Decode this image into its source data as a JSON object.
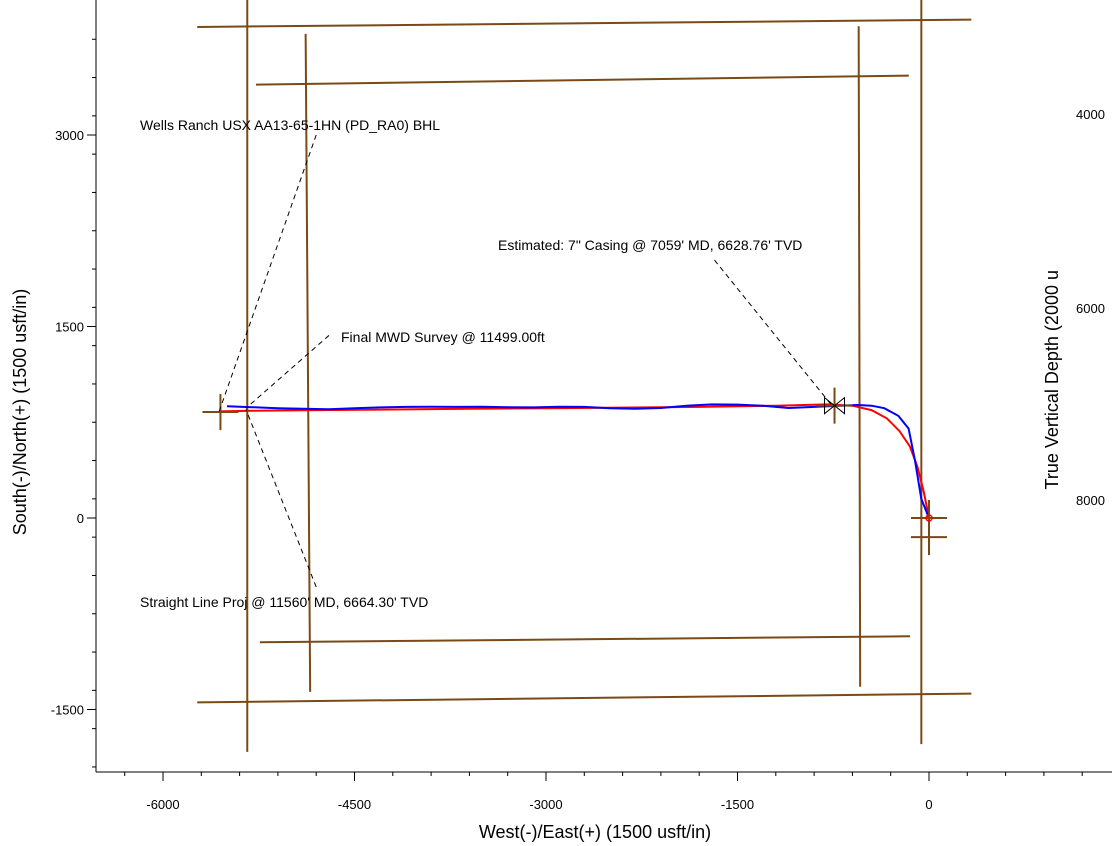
{
  "chart_data": {
    "type": "line",
    "xlabel": "West(-)/East(+) (1500 usft/in)",
    "ylabel": "South(-)/North(+) (1500 usft/in)",
    "ylabel_right": "True Vertical Depth (2000 u",
    "xlim": [
      -6600,
      1200
    ],
    "ylim": [
      -2000,
      4000
    ],
    "x_ticks": [
      -6000,
      -4500,
      -3000,
      -1500,
      0
    ],
    "y_ticks": [
      3000,
      1500,
      0,
      -1500
    ],
    "right_axis_ticks": [
      "4000",
      "6000",
      "8000"
    ],
    "grid": false,
    "series": [
      {
        "role": "plan",
        "color": "#ff0000",
        "x": [
          0,
          -40,
          -90,
          -150,
          -230,
          -330,
          -450,
          -600,
          -800,
          -1200,
          -1800,
          -2400,
          -3000,
          -3600,
          -4200,
          -4800,
          -5300,
          -5560
        ],
        "y": [
          0,
          200,
          400,
          560,
          680,
          780,
          845,
          880,
          890,
          880,
          870,
          865,
          860,
          855,
          850,
          845,
          840,
          835
        ]
      },
      {
        "role": "actual",
        "color": "#0000ff",
        "x": [
          0,
          -60,
          -110,
          -160,
          -240,
          -350,
          -450,
          -560,
          -700,
          -900,
          -1100,
          -1300,
          -1500,
          -1700,
          -1900,
          -2100,
          -2300,
          -2500,
          -2700,
          -2900,
          -3100,
          -3300,
          -3500,
          -3700,
          -3900,
          -4100,
          -4300,
          -4500,
          -4700,
          -4900,
          -5100,
          -5300,
          -5499
        ],
        "y": [
          0,
          150,
          450,
          700,
          800,
          860,
          880,
          885,
          880,
          870,
          862,
          880,
          888,
          890,
          880,
          862,
          855,
          860,
          870,
          872,
          866,
          868,
          872,
          870,
          872,
          870,
          866,
          860,
          852,
          855,
          860,
          868,
          875
        ]
      }
    ],
    "lease_outer": [
      [
        -5340,
        3850
      ],
      [
        -5340,
        -1440
      ],
      [
        -60,
        -1380
      ],
      [
        -60,
        3900
      ]
    ],
    "lease_inner": [
      [
        -4880,
        3400
      ],
      [
        -4850,
        -970
      ],
      [
        -540,
        -930
      ],
      [
        -550,
        3460
      ]
    ],
    "target_markers": [
      [
        0,
        -150
      ],
      [
        0,
        0
      ],
      [
        -5550,
        830
      ],
      [
        -740,
        880
      ]
    ],
    "annotations": [
      {
        "text": "Wells Ranch USX AA13-65-1HN (PD_RA0) BHL",
        "from": [
          -4800,
          3000
        ],
        "to": [
          -5560,
          835
        ]
      },
      {
        "text": "Estimated:  7\" Casing @ 7059' MD, 6628.76' TVD",
        "from": [
          -1680,
          2020
        ],
        "to": [
          -760,
          880
        ]
      },
      {
        "text": "Final MWD Survey @ 11499.00ft",
        "from": [
          -4700,
          1430
        ],
        "to": [
          -5350,
          860
        ]
      },
      {
        "text": "Straight Line Proj @ 11560' MD, 6664.30' TVD",
        "from": [
          -4800,
          -540
        ],
        "to": [
          -5350,
          850
        ]
      }
    ]
  }
}
